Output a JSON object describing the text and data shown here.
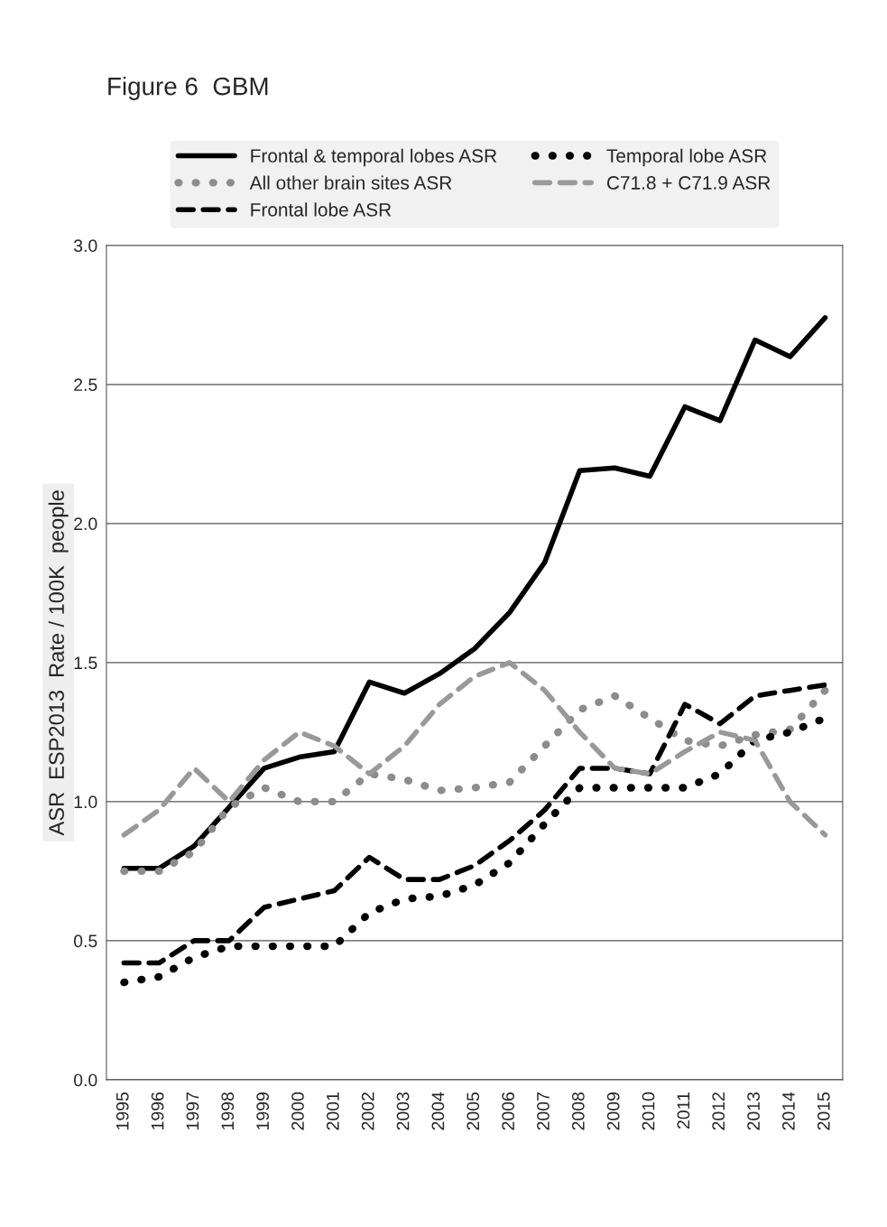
{
  "chart_data": {
    "type": "line",
    "title": "Figure 6  GBM",
    "ylabel": "ASR  ESP2013  Rate / 100K  people",
    "categories": [
      "1995",
      "1996",
      "1997",
      "1998",
      "1999",
      "2000",
      "2001",
      "2002",
      "2003",
      "2004",
      "2005",
      "2006",
      "2007",
      "2008",
      "2009",
      "2010",
      "2011",
      "2012",
      "2013",
      "2014",
      "2015"
    ],
    "series": [
      {
        "name": "Frontal & temporal lobes ASR",
        "color": "#000000",
        "line_style": "solid",
        "values": [
          0.76,
          0.76,
          0.84,
          0.98,
          1.12,
          1.16,
          1.18,
          1.43,
          1.39,
          1.46,
          1.55,
          1.68,
          1.86,
          2.19,
          2.2,
          2.17,
          2.42,
          2.37,
          2.66,
          2.6,
          2.74
        ]
      },
      {
        "name": "All other brain sites ASR",
        "color": "#8c8c8c",
        "line_style": "dotted",
        "values": [
          0.75,
          0.75,
          0.82,
          0.98,
          1.05,
          1.0,
          1.0,
          1.1,
          1.08,
          1.04,
          1.05,
          1.07,
          1.2,
          1.33,
          1.38,
          1.3,
          1.22,
          1.2,
          1.24,
          1.26,
          1.4
        ]
      },
      {
        "name": "Frontal lobe ASR",
        "color": "#000000",
        "line_style": "dashed",
        "values": [
          0.42,
          0.42,
          0.5,
          0.5,
          0.62,
          0.65,
          0.68,
          0.8,
          0.72,
          0.72,
          0.77,
          0.86,
          0.97,
          1.12,
          1.12,
          1.1,
          1.35,
          1.28,
          1.38,
          1.4,
          1.42
        ]
      },
      {
        "name": "Temporal lobe ASR",
        "color": "#000000",
        "line_style": "dotted",
        "values": [
          0.35,
          0.37,
          0.44,
          0.48,
          0.48,
          0.48,
          0.48,
          0.6,
          0.65,
          0.66,
          0.7,
          0.78,
          0.92,
          1.05,
          1.05,
          1.05,
          1.05,
          1.1,
          1.22,
          1.25,
          1.3
        ]
      },
      {
        "name": "C71.8 + C71.9 ASR",
        "color": "#999999",
        "line_style": "dashed",
        "values": [
          0.88,
          0.97,
          1.12,
          1.0,
          1.15,
          1.25,
          1.2,
          1.1,
          1.2,
          1.35,
          1.45,
          1.5,
          1.4,
          1.25,
          1.12,
          1.1,
          1.18,
          1.25,
          1.22,
          1.0,
          0.88
        ]
      }
    ],
    "ylim": [
      0,
      3.0
    ],
    "yticks": [
      {
        "value": 0,
        "label": "0.0"
      },
      {
        "value": 0.5,
        "label": "0.5"
      },
      {
        "value": 1.0,
        "label": "1.0"
      },
      {
        "value": 1.5,
        "label": "1.5"
      },
      {
        "value": 2.0,
        "label": "2.0"
      },
      {
        "value": 2.5,
        "label": "2.5"
      },
      {
        "value": 3.0,
        "label": "3.0"
      }
    ],
    "grid": "y",
    "legend": "top"
  }
}
